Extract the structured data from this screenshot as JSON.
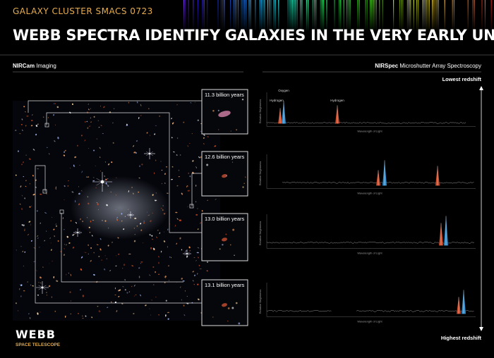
{
  "header": {
    "kicker": "GALAXY CLUSTER SMACS 0723",
    "title": "WEBB SPECTRA IDENTIFY GALAXIES IN THE VERY EARLY UNIVERSE"
  },
  "left": {
    "label_bold": "NIRCam",
    "label_rest": "Imaging"
  },
  "right": {
    "label_bold": "NIRSpec",
    "label_rest": "Microshutter Array Spectroscopy"
  },
  "redshift": {
    "top": "Lowest redshift",
    "bottom": "Highest redshift"
  },
  "cutouts": [
    "11.3 billion years",
    "12.6 billion years",
    "13.0 billion years",
    "13.1 billion years"
  ],
  "panels": [
    {
      "y_label": "Relative Brightness",
      "x_label": "Wavelength of Light",
      "lines": [
        "Oxygen",
        "Hydrogen",
        "Hydrogen"
      ]
    },
    {
      "y_label": "Relative Brightness",
      "x_label": "Wavelength of Light"
    },
    {
      "y_label": "Relative Brightness",
      "x_label": "Wavelength of Light"
    },
    {
      "y_label": "Relative Brightness",
      "x_label": "Wavelength of Light"
    }
  ],
  "logo": {
    "name": "WEBB",
    "tagline": "SPACE TELESCOPE"
  }
}
